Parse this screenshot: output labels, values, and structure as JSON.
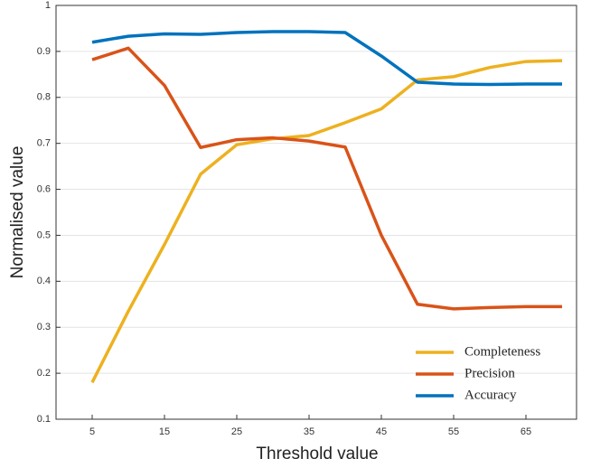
{
  "chart_data": {
    "type": "line",
    "x_label": "Threshold value",
    "y_label": "Normalised value",
    "x": [
      5,
      10,
      15,
      20,
      25,
      30,
      35,
      40,
      45,
      50,
      55,
      60,
      65,
      70
    ],
    "series": [
      {
        "name": "Completeness",
        "color": "#EDB120",
        "values": [
          0.18,
          0.335,
          0.48,
          0.633,
          0.697,
          0.71,
          0.717,
          0.745,
          0.775,
          0.838,
          0.845,
          0.865,
          0.878,
          0.88
        ]
      },
      {
        "name": "Precision",
        "color": "#D95319",
        "values": [
          0.882,
          0.907,
          0.826,
          0.691,
          0.708,
          0.712,
          0.705,
          0.692,
          0.5,
          0.35,
          0.34,
          0.343,
          0.345,
          0.345
        ]
      },
      {
        "name": "Accuracy",
        "color": "#0072BD",
        "values": [
          0.92,
          0.933,
          0.938,
          0.937,
          0.941,
          0.943,
          0.943,
          0.941,
          0.89,
          0.833,
          0.829,
          0.828,
          0.829,
          0.829
        ]
      }
    ],
    "xlim": [
      0,
      72
    ],
    "xticks": [
      5,
      15,
      25,
      35,
      45,
      55,
      65
    ],
    "ylim": [
      0.1,
      1
    ],
    "yticks": [
      0.1,
      0.2,
      0.3,
      0.4,
      0.5,
      0.6,
      0.7,
      0.8,
      0.9,
      1
    ],
    "grid": true,
    "legend": "lower-right"
  }
}
